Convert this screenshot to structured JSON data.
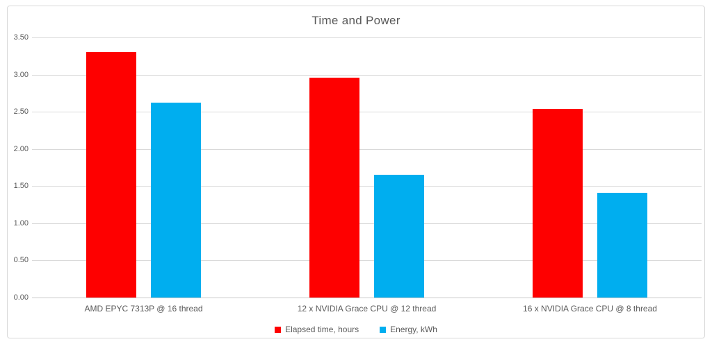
{
  "chart_data": {
    "type": "bar",
    "title": "Time and Power",
    "categories": [
      "AMD EPYC 7313P @ 16 thread",
      "12 x NVIDIA Grace CPU @ 12 thread",
      "16 x NVIDIA Grace CPU @ 8 thread"
    ],
    "series": [
      {
        "name": "Elapsed time, hours",
        "color": "#fe0000",
        "values": [
          3.3,
          2.96,
          2.54
        ]
      },
      {
        "name": "Energy, kWh",
        "color": "#00aeef",
        "values": [
          2.62,
          1.65,
          1.41
        ]
      }
    ],
    "ylim": [
      0,
      3.5
    ],
    "ytick_step": 0.5,
    "yticks": [
      "0.00",
      "0.50",
      "1.00",
      "1.50",
      "2.00",
      "2.50",
      "3.00",
      "3.50"
    ],
    "xlabel": "",
    "ylabel": "",
    "grid": true,
    "legend_position": "bottom"
  },
  "colors": {
    "frame_border": "#d9d9d9",
    "gridline": "#d9d9d9",
    "axis_line": "#c9c9c9",
    "text": "#595959",
    "background": "#ffffff"
  }
}
